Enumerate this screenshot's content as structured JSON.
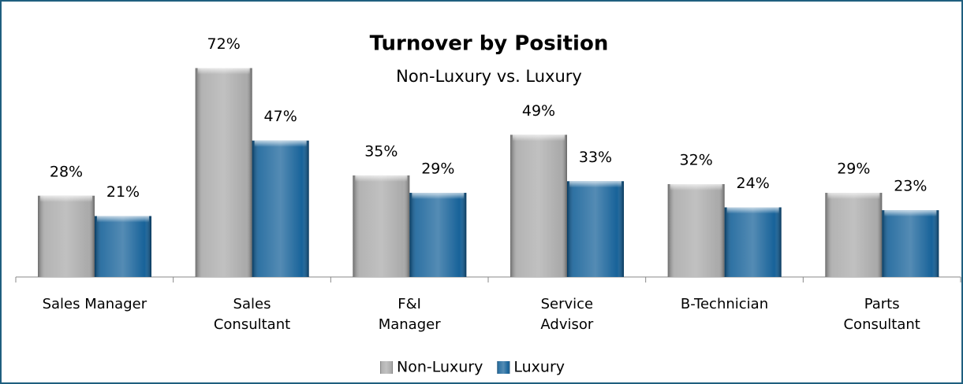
{
  "chart_data": {
    "type": "bar",
    "title": "Turnover by Position",
    "subtitle": "Non-Luxury vs. Luxury",
    "categories": [
      "Sales Manager",
      "Sales\nConsultant",
      "F&I\nManager",
      "Service\nAdvisor",
      "B-Technician",
      "Parts\nConsultant"
    ],
    "series": [
      {
        "name": "Non-Luxury",
        "color": "#a6a6a6",
        "values": [
          28,
          72,
          35,
          49,
          32,
          29
        ],
        "value_labels": [
          "28%",
          "72%",
          "35%",
          "49%",
          "32%",
          "29%"
        ]
      },
      {
        "name": "Luxury",
        "color": "#0b5a94",
        "values": [
          21,
          47,
          29,
          33,
          24,
          23
        ],
        "value_labels": [
          "21%",
          "47%",
          "29%",
          "33%",
          "24%",
          "23%"
        ]
      }
    ],
    "ylim": [
      0,
      80
    ],
    "legend": "bottom"
  }
}
